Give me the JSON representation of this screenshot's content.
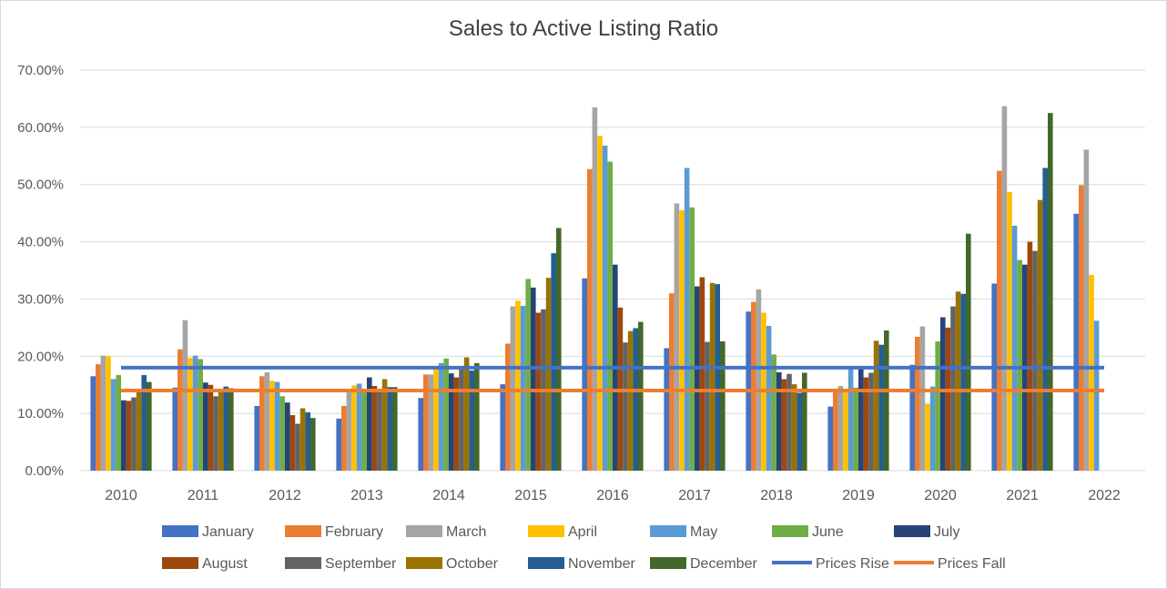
{
  "chart_data": {
    "type": "bar",
    "title": "Sales to Active Listing Ratio",
    "xlabel": "",
    "ylabel": "",
    "ylim": [
      0,
      0.7
    ],
    "yticks": [
      "0.00%",
      "10.00%",
      "20.00%",
      "30.00%",
      "40.00%",
      "50.00%",
      "60.00%",
      "70.00%"
    ],
    "grid": true,
    "legend_position": "bottom",
    "categories": [
      "2010",
      "2011",
      "2012",
      "2013",
      "2014",
      "2015",
      "2016",
      "2017",
      "2018",
      "2019",
      "2020",
      "2021",
      "2022"
    ],
    "series": [
      {
        "name": "January",
        "color": "#4472c4",
        "values": [
          0.165,
          0.145,
          0.113,
          0.091,
          0.127,
          0.151,
          0.336,
          0.214,
          0.278,
          0.112,
          0.185,
          0.327,
          0.449
        ]
      },
      {
        "name": "February",
        "color": "#ed7d31",
        "values": [
          0.186,
          0.212,
          0.165,
          0.113,
          0.168,
          0.222,
          0.527,
          0.31,
          0.295,
          0.14,
          0.234,
          0.524,
          0.499
        ]
      },
      {
        "name": "March",
        "color": "#a5a5a5",
        "values": [
          0.201,
          0.263,
          0.172,
          0.143,
          0.168,
          0.287,
          0.635,
          0.467,
          0.317,
          0.148,
          0.252,
          0.637,
          0.561
        ]
      },
      {
        "name": "April",
        "color": "#ffc000",
        "values": [
          0.2,
          0.197,
          0.157,
          0.149,
          0.177,
          0.297,
          0.585,
          0.455,
          0.276,
          0.143,
          0.117,
          0.487,
          0.342
        ]
      },
      {
        "name": "May",
        "color": "#5b9bd5",
        "values": [
          0.16,
          0.201,
          0.155,
          0.152,
          0.188,
          0.288,
          0.568,
          0.529,
          0.253,
          0.183,
          0.147,
          0.428,
          0.262
        ]
      },
      {
        "name": "June",
        "color": "#70ad47",
        "values": [
          0.167,
          0.195,
          0.13,
          0.143,
          0.196,
          0.335,
          0.54,
          0.46,
          0.203,
          0.145,
          0.226,
          0.368,
          null
        ]
      },
      {
        "name": "July",
        "color": "#264478",
        "values": [
          0.123,
          0.154,
          0.119,
          0.163,
          0.17,
          0.32,
          0.36,
          0.322,
          0.172,
          0.178,
          0.268,
          0.36,
          null
        ]
      },
      {
        "name": "August",
        "color": "#9e480e",
        "values": [
          0.122,
          0.15,
          0.097,
          0.148,
          0.163,
          0.276,
          0.285,
          0.338,
          0.16,
          0.163,
          0.25,
          0.4,
          null
        ]
      },
      {
        "name": "September",
        "color": "#636363",
        "values": [
          0.128,
          0.13,
          0.082,
          0.143,
          0.177,
          0.282,
          0.224,
          0.225,
          0.169,
          0.171,
          0.287,
          0.384,
          null
        ]
      },
      {
        "name": "October",
        "color": "#997300",
        "values": [
          0.138,
          0.142,
          0.109,
          0.16,
          0.198,
          0.337,
          0.244,
          0.328,
          0.151,
          0.227,
          0.313,
          0.473,
          null
        ]
      },
      {
        "name": "November",
        "color": "#255e91",
        "values": [
          0.167,
          0.147,
          0.102,
          0.146,
          0.175,
          0.38,
          0.249,
          0.326,
          0.136,
          0.22,
          0.309,
          0.529,
          null
        ]
      },
      {
        "name": "December",
        "color": "#43682b",
        "values": [
          0.155,
          0.144,
          0.092,
          0.146,
          0.188,
          0.424,
          0.26,
          0.226,
          0.171,
          0.245,
          0.414,
          0.625,
          null
        ]
      }
    ],
    "reference_lines": [
      {
        "name": "Prices Rise",
        "color": "#4472c4",
        "value": 0.18
      },
      {
        "name": "Prices Fall",
        "color": "#ed7d31",
        "value": 0.14
      }
    ]
  }
}
